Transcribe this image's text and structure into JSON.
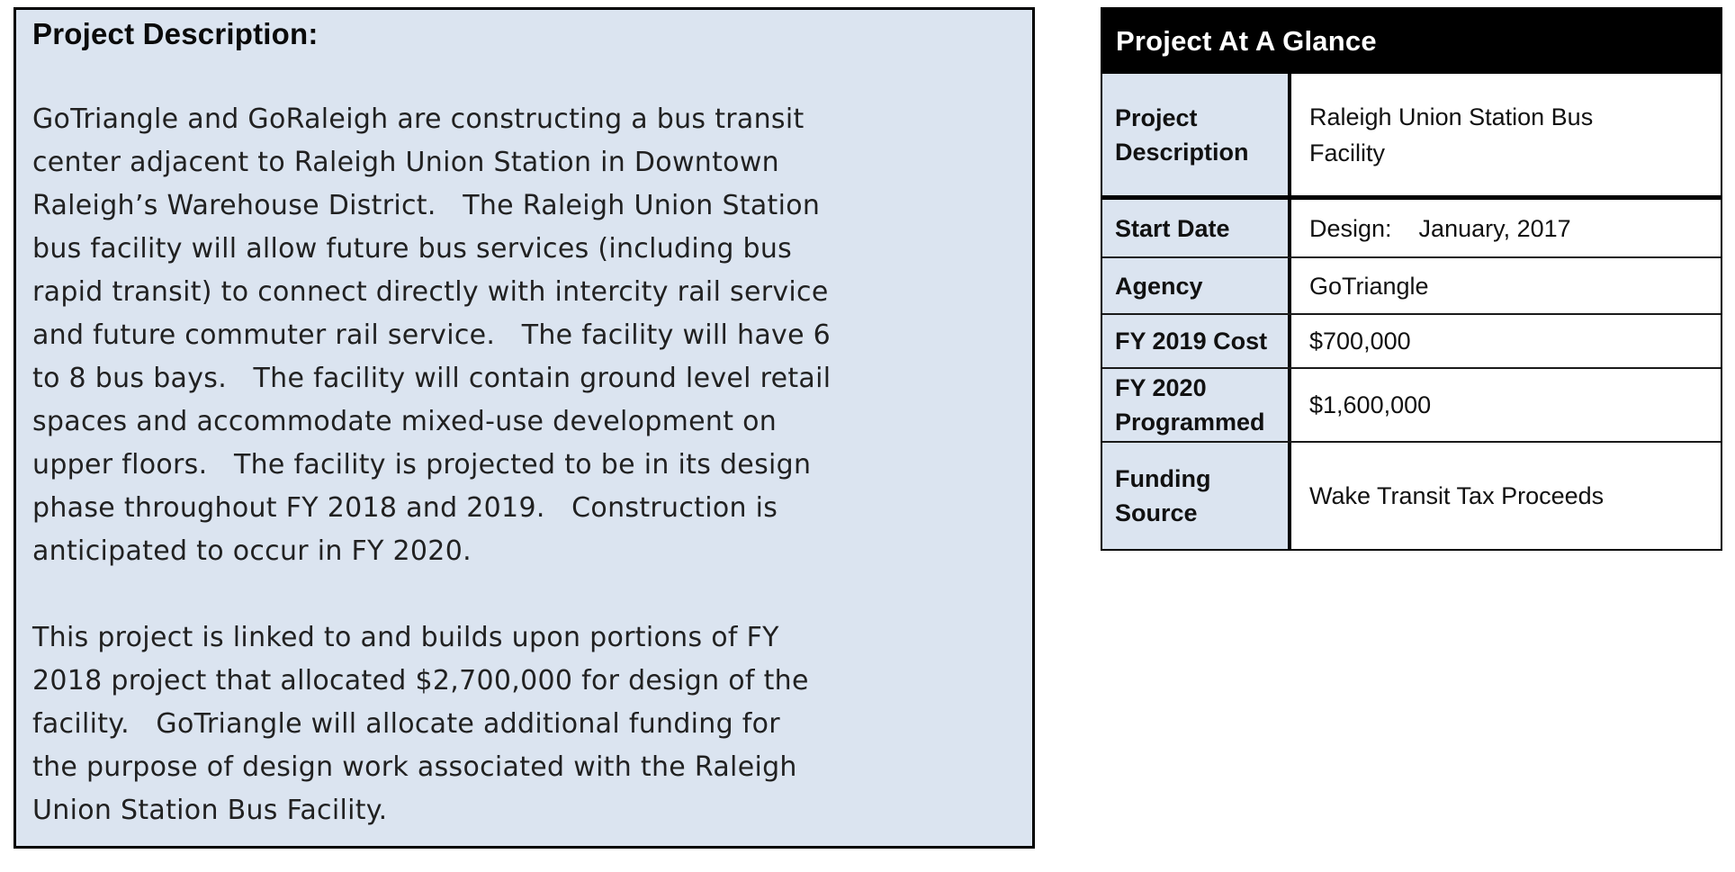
{
  "description_box": {
    "title": "Project Description:",
    "body": "GoTriangle and GoRaleigh are constructing a bus transit\ncenter adjacent to Raleigh Union Station in Downtown\nRaleigh’s Warehouse District.   The Raleigh Union Station\nbus facility will allow future bus services (including bus\nrapid transit) to connect directly with intercity rail service\nand future commuter rail service.   The facility will have 6\nto 8 bus bays.   The facility will contain ground level retail\nspaces and accommodate mixed-use development on\nupper floors.   The facility is projected to be in its design\nphase throughout FY 2018 and 2019.   Construction is\nanticipated to occur in FY 2020.\n\nThis project is linked to and builds upon portions of FY\n2018 project that allocated $2,700,000 for design of the\nfacility.   GoTriangle will allocate additional funding for\nthe purpose of design work associated with the Raleigh\nUnion Station Bus Facility.",
    "background_color": "#dbe4f0",
    "border_color": "#000000"
  },
  "glance_table": {
    "title": "Project At A Glance",
    "header_background": "#000000",
    "header_text_color": "#ffffff",
    "label_background": "#dbe4f0",
    "rows": [
      {
        "label": "Project\nDescription",
        "value": "Raleigh Union Station Bus\nFacility"
      },
      {
        "label": "Start Date",
        "value": "Design:    January, 2017"
      },
      {
        "label": "Agency",
        "value": "GoTriangle"
      },
      {
        "label": "FY 2019 Cost",
        "value": "$700,000"
      },
      {
        "label": "FY 2020\nProgrammed",
        "value": "$1,600,000"
      },
      {
        "label": "Funding\nSource",
        "value": "Wake Transit Tax Proceeds"
      }
    ]
  }
}
